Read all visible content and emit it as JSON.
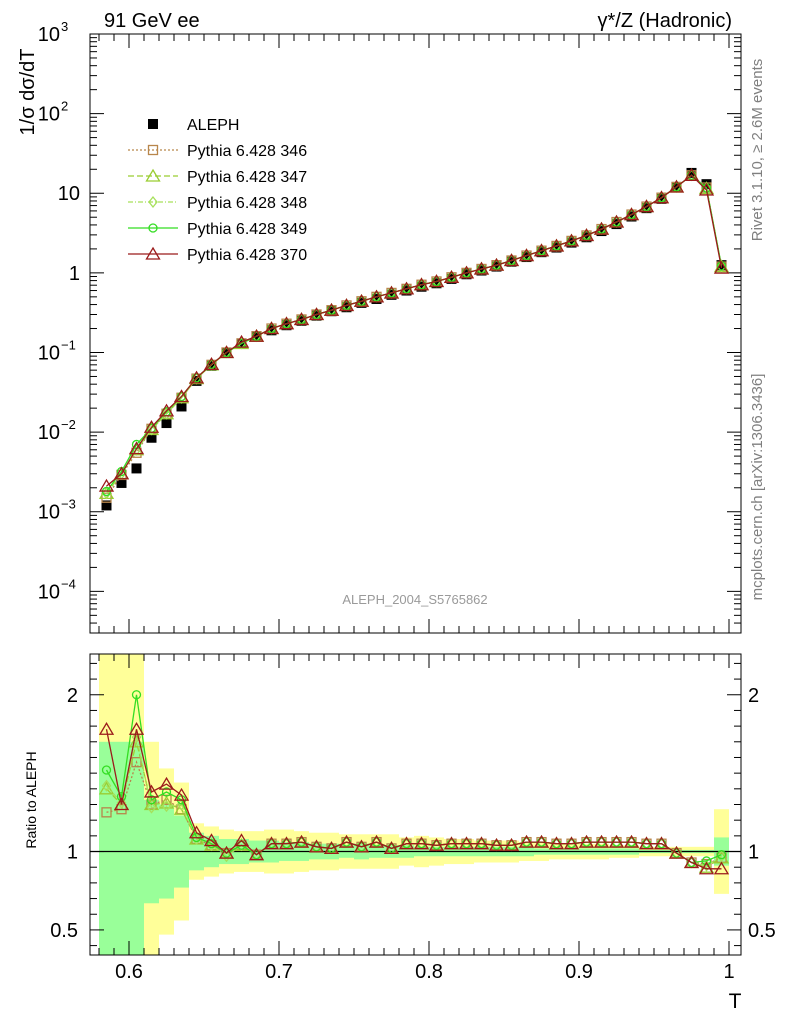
{
  "header": {
    "energy_label": "91 GeV ee",
    "process_label": "γ*/Z (Hadronic)"
  },
  "side_text": {
    "rivet": "Rivet 3.1.10, ≥ 2.6M events",
    "mcplots": "mcplots.cern.ch [arXiv:1306.3436]"
  },
  "watermark": "ALEPH_2004_S5765862",
  "chart_data": [
    {
      "type": "line",
      "title": "",
      "ylabel": "1/σ  dσ/dT",
      "xlabel": "",
      "yscale": "log",
      "ylim": [
        3e-05,
        1000
      ],
      "xlim": [
        0.574,
        1.008
      ],
      "y_ticks": [
        "10^-4",
        "10^-3",
        "10^-2",
        "10^-1",
        "1",
        "10",
        "10^2",
        "10^3"
      ],
      "legend_position": "top-left",
      "reference": {
        "name": "ALEPH",
        "marker": "filled-square",
        "color": "#000000",
        "x": [
          0.585,
          0.595,
          0.605,
          0.615,
          0.625,
          0.635,
          0.645,
          0.655,
          0.665,
          0.675,
          0.685,
          0.695,
          0.705,
          0.715,
          0.725,
          0.735,
          0.745,
          0.755,
          0.765,
          0.775,
          0.785,
          0.795,
          0.805,
          0.815,
          0.825,
          0.835,
          0.845,
          0.855,
          0.865,
          0.875,
          0.885,
          0.895,
          0.905,
          0.915,
          0.925,
          0.935,
          0.945,
          0.955,
          0.965,
          0.975,
          0.985,
          0.995
        ],
        "y": [
          0.0012,
          0.0023,
          0.0035,
          0.0085,
          0.013,
          0.021,
          0.044,
          0.068,
          0.1,
          0.13,
          0.16,
          0.19,
          0.22,
          0.25,
          0.29,
          0.33,
          0.37,
          0.42,
          0.47,
          0.53,
          0.6,
          0.67,
          0.74,
          0.84,
          0.96,
          1.07,
          1.2,
          1.38,
          1.58,
          1.82,
          2.08,
          2.4,
          2.8,
          3.35,
          4.1,
          5.1,
          6.5,
          8.5,
          12.0,
          18.0,
          13.0,
          1.25
        ]
      },
      "series": [
        {
          "name": "Pythia 6.428 346",
          "color": "#b8864b",
          "marker": "open-square",
          "dash": "2,2",
          "y": [
            0.0015,
            0.0029,
            0.0055,
            0.011,
            0.017,
            0.027,
            0.047,
            0.07,
            0.1,
            0.13,
            0.16,
            0.2,
            0.23,
            0.26,
            0.3,
            0.34,
            0.39,
            0.44,
            0.5,
            0.56,
            0.63,
            0.71,
            0.78,
            0.88,
            1.0,
            1.12,
            1.25,
            1.43,
            1.65,
            1.9,
            2.18,
            2.52,
            2.95,
            3.55,
            4.35,
            5.4,
            6.8,
            8.8,
            12.0,
            16.8,
            11.8,
            1.2
          ]
        },
        {
          "name": "Pythia 6.428 347",
          "color": "#9acd32",
          "marker": "open-triangle",
          "dash": "6,3",
          "y": [
            0.0017,
            0.003,
            0.006,
            0.0108,
            0.017,
            0.027,
            0.047,
            0.07,
            0.1,
            0.13,
            0.16,
            0.2,
            0.23,
            0.26,
            0.3,
            0.34,
            0.39,
            0.44,
            0.5,
            0.56,
            0.63,
            0.71,
            0.78,
            0.88,
            1.0,
            1.12,
            1.25,
            1.43,
            1.65,
            1.9,
            2.18,
            2.52,
            2.95,
            3.55,
            4.35,
            5.4,
            6.8,
            8.8,
            12.0,
            16.8,
            11.5,
            1.2
          ]
        },
        {
          "name": "Pythia 6.428 348",
          "color": "#a6e05a",
          "marker": "open-diamond",
          "dash": "5,2,1,2",
          "y": [
            0.0017,
            0.003,
            0.006,
            0.0108,
            0.017,
            0.027,
            0.047,
            0.07,
            0.1,
            0.13,
            0.16,
            0.2,
            0.23,
            0.26,
            0.3,
            0.34,
            0.39,
            0.44,
            0.5,
            0.56,
            0.63,
            0.71,
            0.78,
            0.88,
            1.0,
            1.12,
            1.25,
            1.43,
            1.65,
            1.9,
            2.18,
            2.52,
            2.95,
            3.55,
            4.35,
            5.4,
            6.8,
            8.8,
            12.0,
            16.8,
            11.5,
            1.2
          ]
        },
        {
          "name": "Pythia 6.428 349",
          "color": "#33dd22",
          "marker": "open-circle",
          "dash": "",
          "y": [
            0.0018,
            0.0032,
            0.007,
            0.0112,
            0.018,
            0.028,
            0.048,
            0.071,
            0.1,
            0.13,
            0.16,
            0.2,
            0.23,
            0.26,
            0.3,
            0.34,
            0.39,
            0.44,
            0.5,
            0.56,
            0.63,
            0.71,
            0.78,
            0.88,
            1.0,
            1.12,
            1.25,
            1.43,
            1.65,
            1.9,
            2.18,
            2.52,
            2.95,
            3.55,
            4.35,
            5.4,
            6.8,
            8.8,
            12.0,
            16.8,
            11.6,
            1.22
          ]
        },
        {
          "name": "Pythia 6.428 370",
          "color": "#9b1b1b",
          "marker": "open-triangle",
          "dash": "",
          "y": [
            0.0021,
            0.003,
            0.0062,
            0.0115,
            0.0185,
            0.028,
            0.048,
            0.071,
            0.1,
            0.135,
            0.16,
            0.2,
            0.23,
            0.26,
            0.3,
            0.34,
            0.39,
            0.44,
            0.5,
            0.56,
            0.63,
            0.71,
            0.78,
            0.88,
            1.0,
            1.12,
            1.25,
            1.43,
            1.65,
            1.9,
            2.18,
            2.52,
            2.95,
            3.55,
            4.35,
            5.4,
            6.8,
            8.8,
            12.0,
            16.8,
            11.0,
            1.15
          ]
        }
      ]
    },
    {
      "type": "line",
      "title": "",
      "ylabel": "Ratio to ALEPH",
      "xlabel": "T",
      "ylim": [
        0.34,
        2.26
      ],
      "xlim": [
        0.574,
        1.008
      ],
      "y_ticks": [
        0.5,
        1,
        2
      ],
      "x_ticks": [
        0.6,
        0.7,
        0.8,
        0.9,
        1
      ],
      "band_inner": {
        "color": "#99ff99",
        "lo": [
          0.3,
          0.3,
          0.3,
          0.67,
          0.7,
          0.77,
          0.88,
          0.9,
          0.92,
          0.92,
          0.93,
          0.93,
          0.94,
          0.94,
          0.95,
          0.95,
          0.96,
          0.95,
          0.96,
          0.96,
          0.96,
          0.97,
          0.97,
          0.97,
          0.97,
          0.97,
          0.97,
          0.97,
          0.97,
          0.98,
          0.98,
          0.98,
          0.98,
          0.98,
          0.98,
          0.98,
          0.99,
          0.99,
          0.99,
          0.99,
          0.99,
          0.91
        ],
        "hi": [
          1.7,
          1.7,
          1.7,
          1.33,
          1.3,
          1.23,
          1.12,
          1.1,
          1.08,
          1.08,
          1.07,
          1.07,
          1.06,
          1.06,
          1.05,
          1.05,
          1.04,
          1.05,
          1.04,
          1.04,
          1.04,
          1.03,
          1.03,
          1.03,
          1.03,
          1.03,
          1.03,
          1.03,
          1.03,
          1.02,
          1.02,
          1.02,
          1.02,
          1.02,
          1.02,
          1.02,
          1.01,
          1.01,
          1.01,
          1.01,
          1.01,
          1.09
        ]
      },
      "band_outer": {
        "color": "#ffff99",
        "lo": [
          0.3,
          0.3,
          0.3,
          0.3,
          0.47,
          0.56,
          0.82,
          0.84,
          0.86,
          0.87,
          0.87,
          0.86,
          0.86,
          0.87,
          0.88,
          0.88,
          0.89,
          0.89,
          0.89,
          0.89,
          0.91,
          0.9,
          0.91,
          0.92,
          0.92,
          0.93,
          0.93,
          0.93,
          0.94,
          0.94,
          0.95,
          0.95,
          0.95,
          0.95,
          0.96,
          0.96,
          0.97,
          0.97,
          0.97,
          0.97,
          0.97,
          0.73
        ],
        "hi": [
          2.3,
          2.3,
          2.3,
          1.7,
          1.53,
          1.44,
          1.18,
          1.16,
          1.14,
          1.13,
          1.13,
          1.14,
          1.14,
          1.13,
          1.12,
          1.12,
          1.11,
          1.11,
          1.11,
          1.11,
          1.09,
          1.1,
          1.09,
          1.08,
          1.08,
          1.07,
          1.07,
          1.07,
          1.06,
          1.06,
          1.05,
          1.05,
          1.05,
          1.05,
          1.04,
          1.04,
          1.03,
          1.03,
          1.03,
          1.03,
          1.03,
          1.27
        ]
      },
      "series": [
        {
          "name": "Pythia 6.428 346",
          "y": [
            1.25,
            1.27,
            1.57,
            1.3,
            1.33,
            1.27,
            1.08,
            1.04,
            0.99,
            1.04,
            0.98,
            1.05,
            1.05,
            1.06,
            1.03,
            1.02,
            1.06,
            1.03,
            1.06,
            1.02,
            1.05,
            1.05,
            1.04,
            1.05,
            1.05,
            1.05,
            1.04,
            1.04,
            1.06,
            1.06,
            1.05,
            1.05,
            1.06,
            1.06,
            1.06,
            1.06,
            1.05,
            1.05,
            0.99,
            0.93,
            0.92,
            0.96
          ]
        },
        {
          "name": "Pythia 6.428 347",
          "y": [
            1.4,
            1.3,
            1.7,
            1.3,
            1.31,
            1.27,
            1.08,
            1.04,
            0.99,
            1.04,
            0.98,
            1.05,
            1.05,
            1.06,
            1.03,
            1.02,
            1.06,
            1.03,
            1.06,
            1.02,
            1.05,
            1.05,
            1.04,
            1.05,
            1.05,
            1.05,
            1.04,
            1.04,
            1.06,
            1.06,
            1.05,
            1.05,
            1.06,
            1.06,
            1.06,
            1.06,
            1.05,
            1.05,
            0.99,
            0.93,
            0.9,
            0.96
          ]
        },
        {
          "name": "Pythia 6.428 348",
          "y": [
            1.42,
            1.31,
            1.73,
            1.28,
            1.29,
            1.3,
            1.08,
            1.04,
            0.97,
            1.04,
            0.98,
            1.05,
            1.05,
            1.06,
            1.03,
            1.02,
            1.06,
            1.03,
            1.06,
            1.02,
            1.05,
            1.05,
            1.04,
            1.05,
            1.05,
            1.05,
            1.04,
            1.04,
            1.06,
            1.06,
            1.05,
            1.05,
            1.06,
            1.06,
            1.06,
            1.06,
            1.05,
            1.05,
            0.99,
            0.93,
            0.91,
            0.97
          ]
        },
        {
          "name": "Pythia 6.428 349",
          "y": [
            1.52,
            1.35,
            2.0,
            1.33,
            1.38,
            1.33,
            1.09,
            1.05,
            0.99,
            1.04,
            0.98,
            1.05,
            1.05,
            1.06,
            1.03,
            1.02,
            1.06,
            1.03,
            1.06,
            1.02,
            1.05,
            1.05,
            1.04,
            1.05,
            1.05,
            1.05,
            1.04,
            1.04,
            1.06,
            1.06,
            1.05,
            1.05,
            1.06,
            1.06,
            1.06,
            1.06,
            1.05,
            1.05,
            0.99,
            0.93,
            0.94,
            0.98
          ]
        },
        {
          "name": "Pythia 6.428 370",
          "y": [
            1.78,
            1.3,
            1.78,
            1.38,
            1.43,
            1.36,
            1.12,
            1.07,
            0.99,
            1.07,
            0.98,
            1.05,
            1.05,
            1.06,
            1.03,
            1.02,
            1.06,
            1.03,
            1.06,
            1.02,
            1.05,
            1.05,
            1.04,
            1.05,
            1.05,
            1.05,
            1.04,
            1.04,
            1.06,
            1.06,
            1.05,
            1.05,
            1.06,
            1.06,
            1.06,
            1.06,
            1.05,
            1.05,
            0.99,
            0.93,
            0.89,
            0.89
          ]
        }
      ]
    }
  ]
}
